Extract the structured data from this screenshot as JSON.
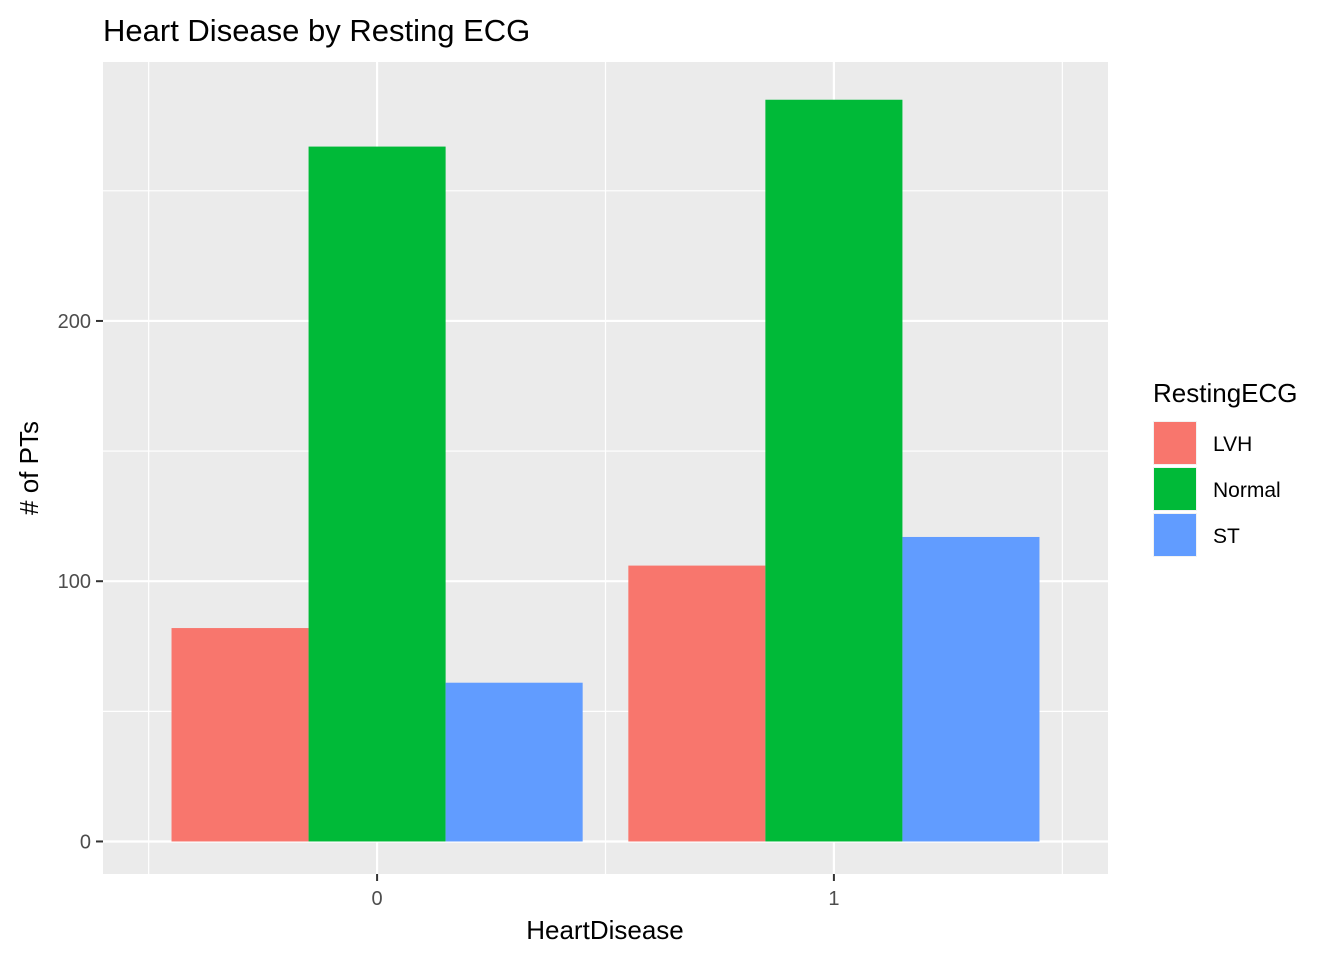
{
  "chart_data": {
    "type": "bar",
    "title": "Heart Disease by Resting ECG",
    "xlabel": "HeartDisease",
    "ylabel": "# of PTs",
    "categories": [
      "0",
      "1"
    ],
    "series": [
      {
        "name": "LVH",
        "color": "#F8766D",
        "values": [
          82,
          106
        ]
      },
      {
        "name": "Normal",
        "color": "#00BA38",
        "values": [
          267,
          285
        ]
      },
      {
        "name": "ST",
        "color": "#619CFF",
        "values": [
          61,
          117
        ]
      }
    ],
    "yticks": [
      "0",
      "100",
      "200"
    ],
    "ylim": [
      -12.5,
      299.5
    ],
    "grid": true,
    "legend_title": "RestingECG",
    "legend_position": "right",
    "panel_background": "#EBEBEB",
    "grid_color": "#FFFFFF"
  }
}
